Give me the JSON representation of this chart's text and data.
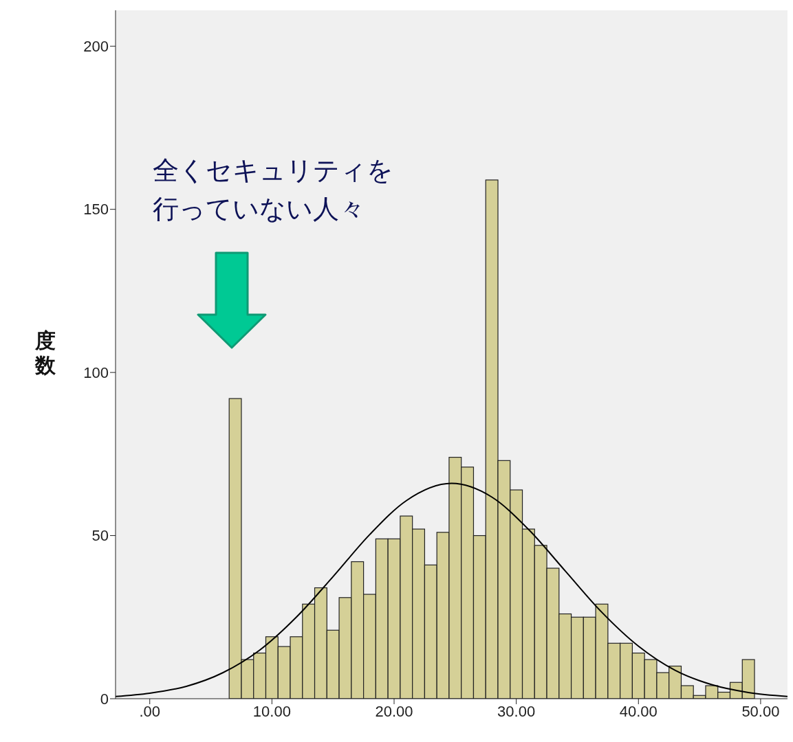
{
  "chart_data": {
    "type": "histogram",
    "ylabel": "度数",
    "annotations": [
      "全くセキュリティを行っていない人々"
    ],
    "bins": [
      6.5,
      7.5,
      8.5,
      9.5,
      10.5,
      11.5,
      12.5,
      13.5,
      14.5,
      15.5,
      16.5,
      17.5,
      18.5,
      19.5,
      20.5,
      21.5,
      22.5,
      23.5,
      24.5,
      25.5,
      26.5,
      27.5,
      28.5,
      29.5,
      30.5,
      31.5,
      32.5,
      33.5,
      34.5,
      35.5,
      36.5,
      37.5,
      38.5,
      39.5,
      40.5,
      41.5,
      42.5,
      43.5,
      44.5,
      45.5,
      46.5,
      47.5,
      48.5,
      49.5
    ],
    "series": [
      {
        "color": "#d5d097",
        "values": [
          92,
          12,
          14,
          19,
          16,
          19,
          29,
          34,
          21,
          31,
          42,
          32,
          49,
          49,
          56,
          52,
          41,
          51,
          74,
          71,
          50,
          159,
          73,
          64,
          52,
          47,
          40,
          26,
          25,
          25,
          29,
          17,
          17,
          14,
          12,
          8,
          10,
          4,
          1,
          4,
          2,
          5,
          12
        ]
      },
      {
        "type": "line",
        "color": "#000000",
        "x": [
          -2.8,
          0,
          3,
          6,
          9,
          12,
          15,
          18,
          21,
          24.7,
          28,
          31,
          34,
          37,
          40,
          43,
          46,
          49,
          52.2
        ],
        "values": [
          0.7,
          1.7,
          3.8,
          8,
          14.9,
          25,
          37.4,
          50.3,
          60.7,
          66,
          61.8,
          51.9,
          39.2,
          26.5,
          16.1,
          8.7,
          4.3,
          1.9,
          0.7
        ]
      }
    ],
    "xlim": [
      -2.8,
      52.2
    ],
    "xticks": [
      {
        "value": 0,
        "label": ".00"
      },
      {
        "value": 10,
        "label": "10.00"
      },
      {
        "value": 20,
        "label": "20.00"
      },
      {
        "value": 30,
        "label": "30.00"
      },
      {
        "value": 40,
        "label": "40.00"
      },
      {
        "value": 50,
        "label": "50.00"
      }
    ],
    "ylim": [
      0,
      211
    ],
    "yticks": [
      0,
      50,
      100,
      150,
      200
    ]
  }
}
